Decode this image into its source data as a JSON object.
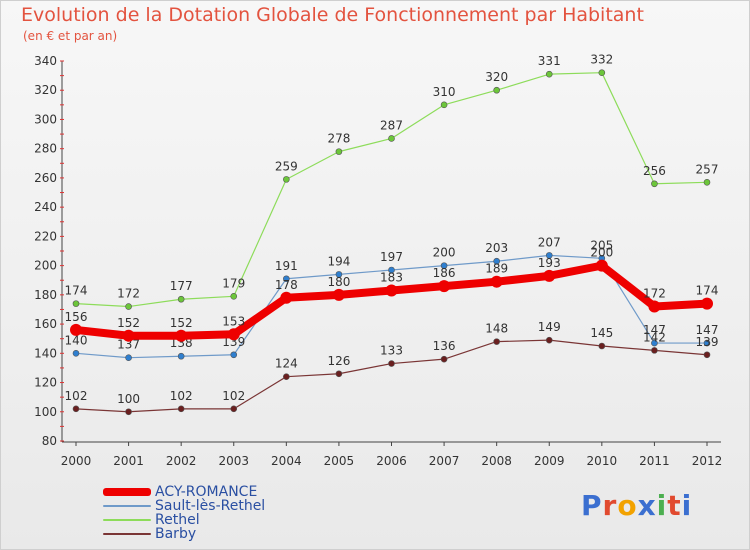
{
  "header": {
    "title": "Evolution de la Dotation Globale de Fonctionnement par Habitant",
    "subtitle": "(en € et par an)"
  },
  "brand": {
    "text": "Proxiti",
    "colors": [
      "#3b6fd0",
      "#e14a2f",
      "#f2a200",
      "#3b6fd0",
      "#4caf50",
      "#e14a2f",
      "#3b6fd0"
    ]
  },
  "chart_data": {
    "type": "line",
    "title": "Evolution de la Dotation Globale de Fonctionnement par Habitant",
    "subtitle": "(en € et par an)",
    "xlabel": "",
    "ylabel": "",
    "x": [
      "2000",
      "2001",
      "2002",
      "2003",
      "2004",
      "2005",
      "2006",
      "2007",
      "2008",
      "2009",
      "2010",
      "2011",
      "2012"
    ],
    "ylim": [
      80,
      340
    ],
    "yticks": [
      80,
      100,
      120,
      140,
      160,
      180,
      200,
      220,
      240,
      260,
      280,
      300,
      320,
      340
    ],
    "grid": false,
    "legend_position": "bottom-left",
    "series": [
      {
        "name": "Rethel",
        "color": "#8ddc5a",
        "dot": "#6cc63a",
        "width": 1.2,
        "values": [
          174,
          172,
          177,
          179,
          259,
          278,
          287,
          310,
          320,
          331,
          332,
          256,
          257
        ]
      },
      {
        "name": "Sault-lès-Rethel",
        "color": "#6f9ac9",
        "dot": "#2f7fcf",
        "width": 1.2,
        "values": [
          140,
          137,
          138,
          139,
          191,
          194,
          197,
          200,
          203,
          207,
          205,
          147,
          147
        ]
      },
      {
        "name": "Barby",
        "color": "#7a3535",
        "dot": "#6a1f1f",
        "width": 1.2,
        "values": [
          102,
          100,
          102,
          102,
          124,
          126,
          133,
          136,
          148,
          149,
          145,
          142,
          139
        ]
      },
      {
        "name": "ACY-ROMANCE",
        "color": "#ee0000",
        "dot": "#ee0000",
        "width": 8,
        "values": [
          156,
          152,
          152,
          153,
          178,
          180,
          183,
          186,
          189,
          193,
          200,
          172,
          174
        ]
      }
    ]
  },
  "legend": {
    "items": [
      {
        "label": "ACY-ROMANCE",
        "color": "#ee0000",
        "thick": true
      },
      {
        "label": "Sault-lès-Rethel",
        "color": "#6f9ac9",
        "thick": false
      },
      {
        "label": "Rethel",
        "color": "#8ddc5a",
        "thick": false
      },
      {
        "label": "Barby",
        "color": "#7a3535",
        "thick": false
      }
    ]
  }
}
